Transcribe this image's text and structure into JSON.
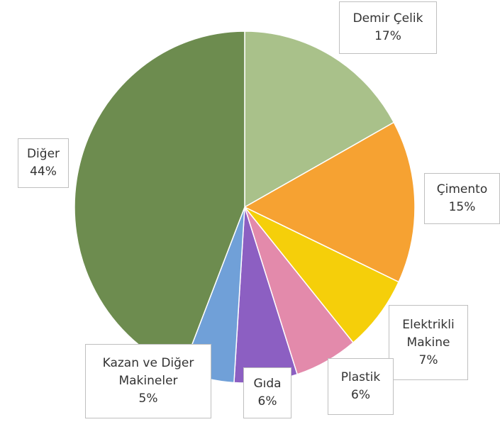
{
  "chart_data": {
    "type": "pie",
    "categories": [
      "Demir Çelik",
      "Çimento",
      "Elektrikli Makine",
      "Plastik",
      "Gıda",
      "Kazan ve Diğer Makineler",
      "Diğer"
    ],
    "values": [
      17,
      15,
      7,
      6,
      6,
      5,
      44
    ],
    "value_labels": [
      "17%",
      "15%",
      "7%",
      "6%",
      "6%",
      "5%",
      "44%"
    ],
    "colors": [
      "#a9c18a",
      "#f6a232",
      "#f5cf0a",
      "#e38aab",
      "#8c5fc2",
      "#70a0d8",
      "#6d8c4f"
    ]
  }
}
